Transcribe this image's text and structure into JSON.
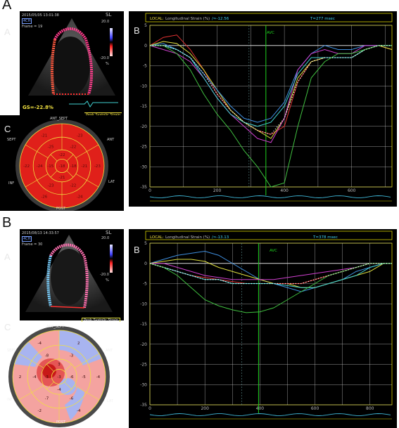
{
  "figure": {
    "panelA": {
      "label": "A"
    },
    "panelB": {
      "label": "B"
    }
  },
  "topA": {
    "echo": {
      "sub_label": "A",
      "timestamp": "2015/05/05 13:01:38",
      "view": "4CH",
      "frame": "Frame = 19",
      "scale_title": "SL",
      "scale_max": "20.0",
      "scale_min": "-20.0",
      "scale_unit": "%",
      "gs": "GS=-22.8%",
      "peak_label": "Peak Systolic Strain"
    },
    "bull": {
      "sub_label": "C",
      "seg_labels": {
        "ant_sept": "ANT_SEPT",
        "ant": "ANT",
        "lat": "LAT",
        "post": "POST",
        "inf": "INF",
        "sept": "SEPT"
      },
      "values": [
        "-23",
        "-23",
        "-24",
        "-26",
        "-22",
        "-21",
        "-22",
        "-21",
        "-22",
        "-23",
        "-24",
        "-25",
        "-22",
        "-18",
        "-21",
        "-15",
        "-18"
      ]
    },
    "graph": {
      "sub_label": "B",
      "local": "LOCAL:",
      "title": "Longitudinal Strain (%)",
      "gs": "/≈-12.56",
      "time": "T=277 msec",
      "avc": "AVC",
      "yticks": [
        "5",
        "0",
        "-5",
        "-10",
        "-15",
        "-20",
        "-25",
        "-30",
        "-35"
      ],
      "xticks": [
        "0",
        "200",
        "400",
        "600"
      ]
    }
  },
  "botB": {
    "echo": {
      "sub_label": "A",
      "timestamp": "2015/08/13 14:33:57",
      "view": "4CH",
      "frame": "Frame = 30",
      "scale_title": "SL",
      "scale_max": "20.0",
      "scale_min": "-20.0",
      "scale_unit": "%",
      "peak_label": "Peak Systolic Strain"
    },
    "bull": {
      "sub_label": "C",
      "seg_labels": {
        "ant_sept": "ANT_SEPT",
        "ant": "ANT",
        "lat": "LAT",
        "post": "POST",
        "inf": "INF",
        "sept": "SEPT"
      },
      "values": [
        "2",
        "-4",
        "-4",
        "-2",
        "2",
        "-4",
        "-3",
        "-5",
        "-6",
        "-7",
        "-4",
        "-8",
        "3",
        "-6",
        "-4",
        "-3",
        "-3"
      ]
    },
    "graph": {
      "sub_label": "B",
      "local": "LOCAL:",
      "title": "Longitudinal Strain (%)",
      "gs": "/≈-13.13",
      "time": "T=378 msec",
      "avc": "AVC",
      "yticks": [
        "5",
        "0",
        "-5",
        "-10",
        "-15",
        "-20",
        "-25",
        "-30",
        "-35"
      ],
      "xticks": [
        "0",
        "200",
        "400",
        "600",
        "800"
      ]
    }
  },
  "colors": {
    "red_map": "#e0201a",
    "pink_map": "#f4a3a0",
    "blue_map": "#a8b4f0",
    "grid": "#d8d8d8",
    "axis_border": "#d8d000",
    "avc": "#1fd11f"
  },
  "chart_data": [
    {
      "type": "line",
      "title": "Longitudinal Strain (%)",
      "xlabel": "",
      "ylabel": "",
      "xlim": [
        0,
        720
      ],
      "ylim": [
        -35,
        5
      ],
      "x": [
        0,
        40,
        80,
        120,
        160,
        200,
        240,
        280,
        320,
        360,
        400,
        440,
        480,
        520,
        560,
        600,
        640,
        680,
        720
      ],
      "series": [
        {
          "name": "",
          "color": "#e23232",
          "values": [
            0,
            2,
            2.6,
            -1,
            -6,
            -12,
            -16,
            -19,
            -21,
            -22,
            -20,
            -9,
            -4,
            -3,
            -3,
            -3,
            -1,
            0,
            -1
          ]
        },
        {
          "name": "",
          "color": "#e0e040",
          "values": [
            0,
            1,
            0.5,
            -2,
            -6,
            -11,
            -16,
            -19,
            -21,
            -23,
            -18,
            -8,
            -4,
            -3,
            -3,
            -3,
            -1,
            0,
            -1
          ]
        },
        {
          "name": "",
          "color": "#3f8fe0",
          "values": [
            0,
            0.5,
            -1,
            -3,
            -7,
            -11,
            -15,
            -18,
            -19,
            -18,
            -14,
            -6,
            -2,
            0,
            -1,
            -1,
            0,
            0,
            0
          ]
        },
        {
          "name": "",
          "color": "#d040d0",
          "values": [
            0,
            -1,
            -2,
            -4,
            -8,
            -13,
            -17,
            -20,
            -23,
            -24,
            -18,
            -6,
            -2,
            -1,
            -2,
            -2,
            0,
            0,
            0
          ]
        },
        {
          "name": "",
          "color": "#40d0d0",
          "values": [
            0,
            0,
            -1,
            -3,
            -8,
            -13,
            -17,
            -19,
            -20,
            -19,
            -15,
            -7,
            -3,
            -3,
            -3,
            -3,
            -1,
            0,
            0
          ]
        },
        {
          "name": "",
          "color": "#40c040",
          "values": [
            0,
            0,
            -2,
            -6,
            -12,
            -17,
            -21,
            -26,
            -30,
            -35,
            -34,
            -20,
            -8,
            -4,
            -2,
            -2,
            -1,
            0,
            0
          ]
        },
        {
          "name": "",
          "color": "#ffffff",
          "values": [
            0,
            0,
            -1,
            -3,
            -7,
            -12,
            -16,
            -19,
            -21,
            -22,
            -18,
            -9,
            -4,
            -3,
            -3,
            -3,
            -1,
            0,
            0
          ]
        }
      ]
    },
    {
      "type": "line",
      "title": "Longitudinal Strain (%)",
      "xlabel": "",
      "ylabel": "",
      "xlim": [
        0,
        880
      ],
      "ylim": [
        -35,
        5
      ],
      "x": [
        0,
        50,
        100,
        150,
        200,
        250,
        300,
        350,
        400,
        450,
        500,
        550,
        600,
        650,
        700,
        750,
        800,
        850,
        880
      ],
      "series": [
        {
          "name": "",
          "color": "#3f8fe0",
          "values": [
            0,
            1,
            2,
            2.5,
            3,
            2,
            0,
            -2,
            -4,
            -5,
            -6,
            -7,
            -6,
            -5,
            -4,
            -2,
            -1,
            0,
            0
          ]
        },
        {
          "name": "",
          "color": "#e0e040",
          "values": [
            0,
            0.5,
            1,
            1,
            0.5,
            -1,
            -2,
            -3,
            -4,
            -5,
            -5,
            -6,
            -6,
            -5,
            -4,
            -3,
            -2,
            0,
            0
          ]
        },
        {
          "name": "",
          "color": "#e23232",
          "values": [
            0,
            -1,
            -2,
            -3,
            -3.5,
            -4,
            -4.5,
            -5,
            -5,
            -5,
            -5,
            -5,
            -4,
            -3,
            -2,
            -1,
            0,
            0,
            0
          ]
        },
        {
          "name": "",
          "color": "#d040d0",
          "values": [
            0,
            0,
            -1,
            -2,
            -3,
            -3.5,
            -4,
            -4,
            -4,
            -4,
            -3.5,
            -3,
            -2.5,
            -2,
            -1.5,
            -1,
            0,
            0,
            0
          ]
        },
        {
          "name": "",
          "color": "#40d0d0",
          "values": [
            0,
            -1,
            -2,
            -3,
            -4,
            -4,
            -5,
            -5,
            -5,
            -5,
            -5.5,
            -6,
            -6,
            -5,
            -4,
            -3,
            -1,
            0,
            0
          ]
        },
        {
          "name": "",
          "color": "#40c040",
          "values": [
            0,
            -1,
            -3,
            -6,
            -9,
            -10.5,
            -11.5,
            -12.2,
            -12,
            -11,
            -9,
            -7,
            -5,
            -3,
            -2,
            -1,
            0,
            0,
            0
          ]
        },
        {
          "name": "",
          "color": "#ffffff",
          "values": [
            0,
            -1,
            -2,
            -3,
            -4,
            -4,
            -5,
            -5,
            -5,
            -5,
            -5,
            -5,
            -4,
            -3,
            -2,
            -1,
            0,
            0,
            0
          ]
        }
      ]
    }
  ]
}
